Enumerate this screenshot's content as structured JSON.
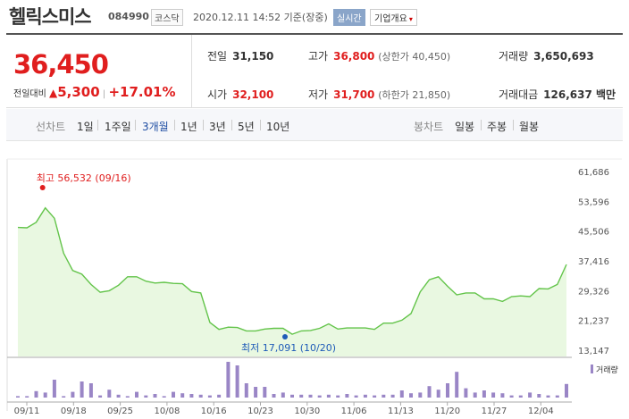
{
  "header": {
    "name": "헬릭스미스",
    "code": "084990",
    "market": "코스닥",
    "timestamp": "2020.12.11 14:52 기준(장중)",
    "live_badge": "실시간",
    "corp_button": "기업개요",
    "corp_arrow": "▾"
  },
  "summary": {
    "price": "36,450",
    "change_label": "전일대비",
    "change_arrow": "▲",
    "change_value": "5,300",
    "change_pct": "+17.01%",
    "prev_label": "전일",
    "prev_value": "31,150",
    "high_label": "고가",
    "high_value": "36,800",
    "high_limit": "(상한가 40,450)",
    "volume_label": "거래량",
    "volume_value": "3,650,693",
    "open_label": "시가",
    "open_value": "32,100",
    "low_label": "저가",
    "low_value": "31,700",
    "low_limit": "(하한가 21,850)",
    "amount_label": "거래대금",
    "amount_value": "126,637 백만"
  },
  "tabs": {
    "line_label": "선차트",
    "line_tabs": [
      "1일",
      "1주일",
      "3개월",
      "1년",
      "3년",
      "5년",
      "10년"
    ],
    "active_tab": "3개월",
    "candle_label": "봉차트",
    "candle_tabs": [
      "일봉",
      "주봉",
      "월봉"
    ]
  },
  "colors": {
    "up": "#e01e1e",
    "line": "#63c44a",
    "area": "#e9f8e1",
    "volume_bar": "#9a86c6",
    "low_marker": "#1e5bb8",
    "active_tab": "#1f4ea3"
  },
  "chart_data": [
    {
      "type": "area",
      "ylim": [
        13147,
        61686
      ],
      "y_ticks": [
        "61,686",
        "53,596",
        "45,506",
        "37,416",
        "29,326",
        "21,237",
        "13,147"
      ],
      "x_ticks": [
        "09/11",
        "09/18",
        "09/25",
        "10/08",
        "10/16",
        "10/23",
        "10/30",
        "11/06",
        "11/13",
        "11/20",
        "11/27",
        "12/04"
      ],
      "max_annotation": "최고 56,532 (09/16)",
      "min_annotation": "최저 17,091 (10/20)",
      "values": [
        46500,
        46400,
        47900,
        51800,
        49000,
        39500,
        34800,
        33800,
        31000,
        28900,
        29300,
        30800,
        33100,
        33100,
        31900,
        31400,
        31600,
        31300,
        31200,
        29100,
        28700,
        20700,
        18800,
        19400,
        19300,
        18400,
        18400,
        18900,
        19100,
        19100,
        17500,
        18400,
        18500,
        19100,
        20300,
        18900,
        19200,
        19200,
        19200,
        18800,
        20500,
        20500,
        21300,
        23100,
        29000,
        32300,
        33100,
        30500,
        28200,
        28700,
        28700,
        27100,
        27100,
        26400,
        27700,
        27900,
        27700,
        29900,
        29800,
        31000,
        36450
      ]
    },
    {
      "type": "bar",
      "legend": "거래량",
      "values": [
        4,
        4,
        18,
        14,
        50,
        4,
        16,
        45,
        40,
        6,
        22,
        8,
        4,
        16,
        6,
        10,
        4,
        16,
        12,
        10,
        8,
        6,
        8,
        100,
        90,
        40,
        30,
        30,
        10,
        14,
        8,
        8,
        8,
        6,
        8,
        6,
        10,
        6,
        8,
        6,
        8,
        8,
        20,
        12,
        14,
        32,
        22,
        40,
        72,
        26,
        14,
        20,
        14,
        12,
        6,
        6,
        14,
        10,
        6,
        6,
        38
      ]
    }
  ]
}
